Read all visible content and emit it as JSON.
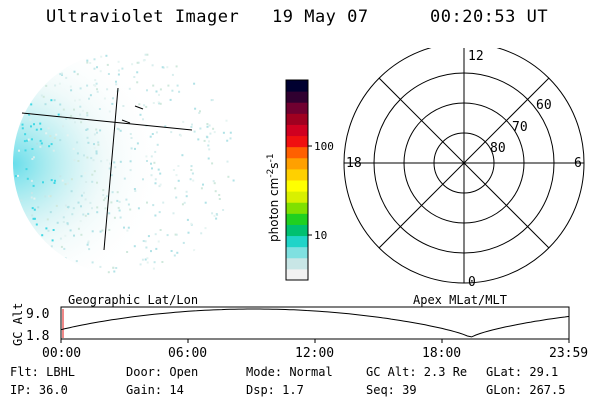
{
  "header": {
    "title": "Ultraviolet Imager",
    "date": "19 May 07",
    "time": "00:20:53 UT"
  },
  "colorbar": {
    "label": "photon cm",
    "label_sup1": "-2",
    "label_mid": "s",
    "label_sup2": "-1",
    "tick_100": "100",
    "tick_10": "10",
    "colors": [
      "#f2f2f2",
      "#c8e6e6",
      "#7fe0e0",
      "#20d4c8",
      "#00c070",
      "#20d020",
      "#80e000",
      "#d8f000",
      "#ffff00",
      "#ffd000",
      "#ffa000",
      "#ff6000",
      "#f01010",
      "#d00020",
      "#a00020",
      "#700030",
      "#300030",
      "#000030"
    ]
  },
  "polar": {
    "label_top": "12",
    "label_right": "6",
    "label_bottom": "0",
    "label_left": "18",
    "ring_60": "60",
    "ring_70": "70",
    "ring_80": "80"
  },
  "altplot": {
    "ylabel": "GC Alt",
    "ytick_top": "9.0",
    "ytick_bottom": "1.8",
    "left_title": "Geographic Lat/Lon",
    "right_title": "Apex MLat/MLT",
    "xticks": [
      "00:00",
      "06:00",
      "12:00",
      "18:00",
      "23:59"
    ]
  },
  "info": {
    "flt": "Flt: LBHL",
    "ip": "IP: 36.0",
    "door": "Door: Open",
    "gain": "Gain: 14",
    "mode": "Mode: Normal",
    "dsp": "Dsp:    1.7",
    "gcalt": "GC Alt: 2.3 Re",
    "seq": "Seq: 39",
    "glat": "GLat:  29.1",
    "glon": "GLon: 267.5"
  }
}
